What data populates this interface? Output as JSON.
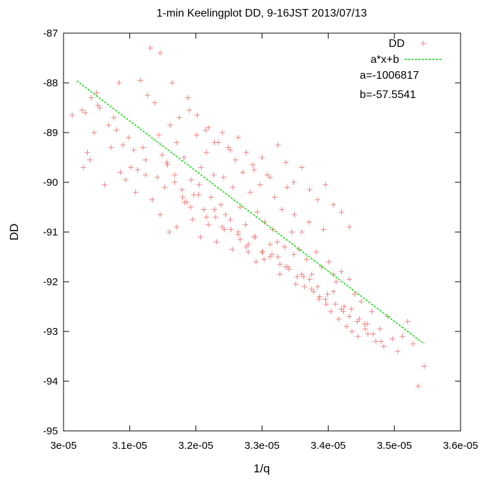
{
  "chart_data": {
    "type": "scatter",
    "title": "1-min Keelingplot DD, 9-16JST 2013/07/13",
    "xlabel": "1/q",
    "ylabel": "DD",
    "xlim": [
      3e-05,
      3.6e-05
    ],
    "ylim": [
      -95,
      -87
    ],
    "xticks": [
      3e-05,
      3.1e-05,
      3.2e-05,
      3.3e-05,
      3.4e-05,
      3.5e-05,
      3.6e-05
    ],
    "xtick_labels": [
      "3e-05",
      "3.1e-05",
      "3.2e-05",
      "3.3e-05",
      "3.4e-05",
      "3.5e-05",
      "3.6e-05"
    ],
    "yticks": [
      -95,
      -94,
      -93,
      -92,
      -91,
      -90,
      -89,
      -88,
      -87
    ],
    "ytick_labels": [
      "-95",
      "-94",
      "-93",
      "-92",
      "-91",
      "-90",
      "-89",
      "-88",
      "-87"
    ],
    "grid": false,
    "legend_position": "top-right",
    "series": [
      {
        "name": "DD",
        "kind": "points",
        "marker": "plus",
        "color": "#f08080",
        "x": [
          3.013e-05,
          3.028e-05,
          3.03e-05,
          3.033e-05,
          3.036e-05,
          3.04e-05,
          3.042e-05,
          3.046e-05,
          3.05e-05,
          3.052e-05,
          3.055e-05,
          3.062e-05,
          3.068e-05,
          3.072e-05,
          3.076e-05,
          3.08e-05,
          3.084e-05,
          3.086e-05,
          3.09e-05,
          3.094e-05,
          3.098e-05,
          3.102e-05,
          3.106e-05,
          3.109e-05,
          3.112e-05,
          3.116e-05,
          3.12e-05,
          3.124e-05,
          3.127e-05,
          3.131e-05,
          3.134e-05,
          3.138e-05,
          3.142e-05,
          3.146e-05,
          3.149e-05,
          3.153e-05,
          3.157e-05,
          3.161e-05,
          3.164e-05,
          3.168e-05,
          3.171e-05,
          3.175e-05,
          3.179e-05,
          3.182e-05,
          3.186e-05,
          3.19e-05,
          3.193e-05,
          3.197e-05,
          3.201e-05,
          3.205e-05,
          3.208e-05,
          3.212e-05,
          3.216e-05,
          3.219e-05,
          3.223e-05,
          3.227e-05,
          3.23e-05,
          3.234e-05,
          3.238e-05,
          3.242e-05,
          3.245e-05,
          3.249e-05,
          3.253e-05,
          3.256e-05,
          3.26e-05,
          3.264e-05,
          3.267e-05,
          3.271e-05,
          3.275e-05,
          3.279e-05,
          3.282e-05,
          3.286e-05,
          3.29e-05,
          3.293e-05,
          3.297e-05,
          3.301e-05,
          3.304e-05,
          3.308e-05,
          3.312e-05,
          3.316e-05,
          3.319e-05,
          3.323e-05,
          3.327e-05,
          3.33e-05,
          3.334e-05,
          3.338e-05,
          3.341e-05,
          3.345e-05,
          3.349e-05,
          3.353e-05,
          3.356e-05,
          3.36e-05,
          3.364e-05,
          3.367e-05,
          3.371e-05,
          3.375e-05,
          3.378e-05,
          3.382e-05,
          3.386e-05,
          3.39e-05,
          3.393e-05,
          3.397e-05,
          3.401e-05,
          3.404e-05,
          3.408e-05,
          3.412e-05,
          3.416e-05,
          3.42e-05,
          3.424e-05,
          3.428e-05,
          3.432e-05,
          3.436e-05,
          3.44e-05,
          3.445e-05,
          3.45e-05,
          3.455e-05,
          3.46e-05,
          3.466e-05,
          3.472e-05,
          3.478e-05,
          3.484e-05,
          3.49e-05,
          3.497e-05,
          3.505e-05,
          3.512e-05,
          3.52e-05,
          3.528e-05,
          3.536e-05,
          3.545e-05,
          3.124e-05,
          3.146e-05,
          3.16e-05,
          3.171e-05,
          3.183e-05,
          3.195e-05,
          3.207e-05,
          3.219e-05,
          3.231e-05,
          3.243e-05,
          3.255e-05,
          3.267e-05,
          3.279e-05,
          3.291e-05,
          3.303e-05,
          3.315e-05,
          3.327e-05,
          3.339e-05,
          3.351e-05,
          3.363e-05,
          3.375e-05,
          3.387e-05,
          3.399e-05,
          3.411e-05,
          3.423e-05,
          3.435e-05,
          3.447e-05,
          3.459e-05,
          3.188e-05,
          3.202e-05,
          3.215e-05,
          3.228e-05,
          3.24e-05,
          3.252e-05,
          3.264e-05,
          3.276e-05,
          3.288e-05,
          3.3e-05,
          3.312e-05,
          3.324e-05,
          3.336e-05,
          3.348e-05,
          3.36e-05,
          3.372e-05,
          3.384e-05,
          3.396e-05,
          3.408e-05,
          3.42e-05,
          3.432e-05,
          3.144e-05,
          3.156e-05,
          3.168e-05,
          3.18e-05,
          3.192e-05,
          3.204e-05,
          3.216e-05,
          3.228e-05,
          3.24e-05,
          3.252e-05,
          3.264e-05,
          3.276e-05,
          3.288e-05,
          3.3e-05,
          3.312e-05,
          3.324e-05,
          3.336e-05,
          3.348e-05,
          3.36e-05,
          3.372e-05,
          3.384e-05,
          3.396e-05,
          3.408e-05,
          3.42e-05,
          3.432e-05,
          3.444e-05,
          3.456e-05,
          3.468e-05,
          3.48e-05
        ],
        "y": [
          -88.65,
          -88.55,
          -89.7,
          -88.6,
          -89.4,
          -89.55,
          -88.3,
          -89.0,
          -88.2,
          -88.45,
          -88.5,
          -90.05,
          -88.85,
          -89.3,
          -88.7,
          -88.95,
          -88.0,
          -89.8,
          -89.25,
          -89.95,
          -89.1,
          -89.7,
          -89.35,
          -90.2,
          -89.75,
          -87.95,
          -89.3,
          -89.55,
          -88.25,
          -87.3,
          -90.35,
          -88.4,
          -89.9,
          -87.4,
          -89.45,
          -90.1,
          -89.65,
          -88.85,
          -88.0,
          -90.0,
          -89.2,
          -88.7,
          -90.15,
          -89.5,
          -90.4,
          -88.55,
          -89.95,
          -90.25,
          -89.05,
          -90.05,
          -89.7,
          -90.55,
          -89.4,
          -88.9,
          -90.3,
          -89.85,
          -90.7,
          -89.2,
          -90.45,
          -89.9,
          -90.65,
          -89.3,
          -90.95,
          -90.1,
          -89.55,
          -91.05,
          -90.5,
          -89.8,
          -90.85,
          -91.25,
          -90.2,
          -89.65,
          -91.1,
          -90.6,
          -90.05,
          -91.4,
          -90.8,
          -89.85,
          -91.5,
          -90.95,
          -90.3,
          -91.2,
          -91.65,
          -90.55,
          -91.3,
          -90.1,
          -91.75,
          -91.0,
          -90.65,
          -91.9,
          -91.35,
          -91.0,
          -92.1,
          -91.55,
          -90.8,
          -91.85,
          -92.2,
          -91.4,
          -92.35,
          -91.7,
          -90.95,
          -92.45,
          -91.6,
          -92.6,
          -91.85,
          -92.0,
          -92.75,
          -91.8,
          -92.5,
          -92.9,
          -91.95,
          -93.0,
          -92.25,
          -93.1,
          -92.4,
          -92.85,
          -93.05,
          -92.6,
          -93.2,
          -92.95,
          -93.3,
          -92.7,
          -93.15,
          -93.4,
          -93.1,
          -92.8,
          -93.25,
          -94.1,
          -93.7,
          -89.85,
          -90.65,
          -91.0,
          -90.9,
          -90.4,
          -90.75,
          -91.1,
          -90.85,
          -91.2,
          -90.95,
          -91.35,
          -91.15,
          -91.4,
          -91.6,
          -91.55,
          -91.45,
          -91.85,
          -91.7,
          -92.05,
          -91.9,
          -92.15,
          -92.3,
          -92.25,
          -92.45,
          -92.6,
          -92.55,
          -92.75,
          -92.85,
          -88.3,
          -88.65,
          -88.95,
          -89.2,
          -89.0,
          -89.35,
          -89.1,
          -89.4,
          -89.75,
          -89.5,
          -89.9,
          -89.25,
          -89.6,
          -90.0,
          -89.7,
          -90.15,
          -90.35,
          -90.05,
          -90.45,
          -90.6,
          -90.9,
          -89.05,
          -89.6,
          -89.85,
          -90.3,
          -90.5,
          -90.25,
          -90.7,
          -90.55,
          -90.9,
          -90.75,
          -91.0,
          -91.3,
          -91.1,
          -91.4,
          -91.25,
          -91.5,
          -91.7,
          -91.45,
          -91.85,
          -91.95,
          -92.1,
          -92.35,
          -92.2,
          -92.55,
          -92.7,
          -92.8,
          -92.95,
          -93.05,
          -93.2
        ]
      },
      {
        "name": "a*x+b",
        "kind": "line",
        "color": "#00e000",
        "dash": true,
        "x": [
          3.02e-05,
          3.545e-05
        ],
        "y": [
          -87.96,
          -93.25
        ]
      }
    ],
    "annotations": [
      "a=-1006817",
      "b=-57.5541"
    ]
  }
}
